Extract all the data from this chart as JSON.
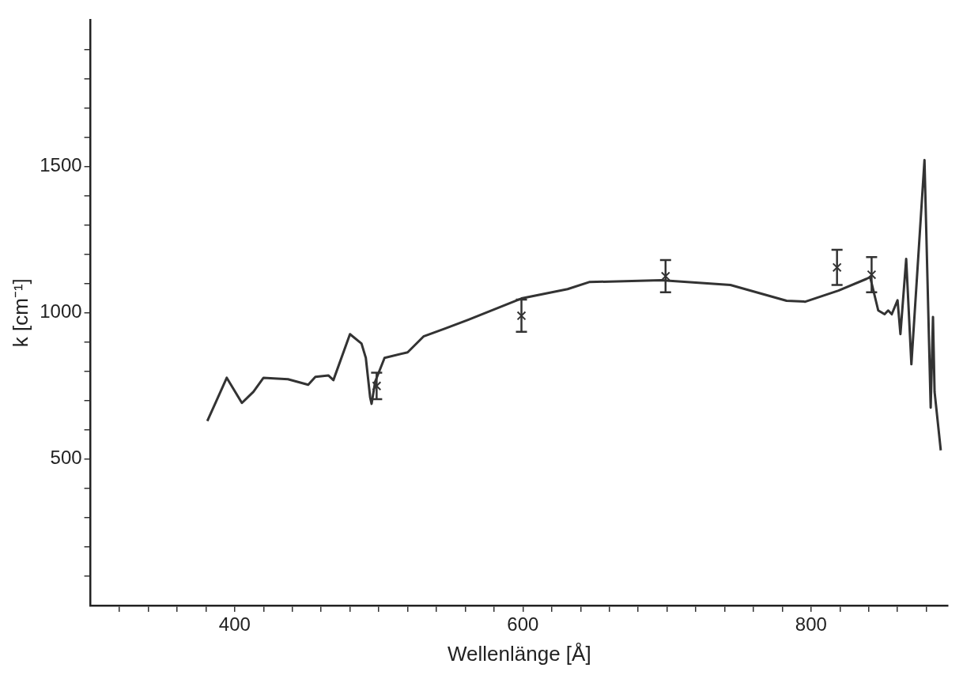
{
  "chart_data": {
    "type": "line",
    "xlabel": "Wellenlänge [Å]",
    "ylabel": "k [cm⁻¹]",
    "xlim": [
      300,
      895
    ],
    "ylim": [
      0,
      2000
    ],
    "xticks": [
      {
        "value": 320,
        "label": null
      },
      {
        "value": 340,
        "label": null
      },
      {
        "value": 360,
        "label": null
      },
      {
        "value": 380,
        "label": null
      },
      400,
      {
        "value": 420,
        "label": null
      },
      {
        "value": 440,
        "label": null
      },
      {
        "value": 460,
        "label": null
      },
      {
        "value": 480,
        "label": null
      },
      {
        "value": 500,
        "label": null
      },
      {
        "value": 520,
        "label": null
      },
      {
        "value": 540,
        "label": null
      },
      {
        "value": 560,
        "label": null
      },
      {
        "value": 580,
        "label": null
      },
      600,
      {
        "value": 620,
        "label": null
      },
      {
        "value": 640,
        "label": null
      },
      {
        "value": 660,
        "label": null
      },
      {
        "value": 680,
        "label": null
      },
      {
        "value": 700,
        "label": null
      },
      {
        "value": 720,
        "label": null
      },
      {
        "value": 740,
        "label": null
      },
      {
        "value": 760,
        "label": null
      },
      {
        "value": 780,
        "label": null
      },
      800,
      {
        "value": 820,
        "label": null
      },
      {
        "value": 840,
        "label": null
      },
      {
        "value": 860,
        "label": null
      },
      {
        "value": 880,
        "label": null
      }
    ],
    "yticks": [
      {
        "value": 100,
        "label": null
      },
      {
        "value": 200,
        "label": null
      },
      {
        "value": 300,
        "label": null
      },
      {
        "value": 400,
        "label": null
      },
      500,
      {
        "value": 600,
        "label": null
      },
      {
        "value": 700,
        "label": null
      },
      {
        "value": 800,
        "label": null
      },
      {
        "value": 900,
        "label": null
      },
      1000,
      {
        "value": 1100,
        "label": null
      },
      {
        "value": 1200,
        "label": null
      },
      {
        "value": 1300,
        "label": null
      },
      {
        "value": 1400,
        "label": null
      },
      1500,
      {
        "value": 1600,
        "label": null
      },
      {
        "value": 1700,
        "label": null
      },
      {
        "value": 1800,
        "label": null
      },
      {
        "value": 1900,
        "label": null
      }
    ],
    "grid": false,
    "legend": false,
    "series": [
      {
        "color": "#333333",
        "marker": "none",
        "x": [
          381,
          394.5,
          405,
          413,
          420,
          437,
          451,
          456,
          465,
          468.5,
          480,
          488,
          491,
          494,
          495,
          497.5,
          504,
          520,
          531,
          546,
          562,
          599,
          631,
          646,
          696,
          744,
          783,
          796,
          819,
          838.5,
          841,
          846.6,
          851,
          853.5,
          856,
          860,
          862,
          866,
          869.6,
          878.7,
          883,
          884.6,
          885.7,
          890
        ],
        "values": [
          630,
          778,
          692,
          730,
          778,
          773,
          754,
          781,
          786,
          770,
          927,
          895,
          846,
          711,
          689,
          765,
          846,
          865,
          919,
          946,
          976,
          1049,
          1081,
          1105,
          1111,
          1095,
          1041,
          1038,
          1076,
          1116,
          1122,
          1008,
          995,
          1008,
          995,
          1043,
          927,
          1184,
          824,
          1522,
          676,
          986,
          730,
          530
        ]
      },
      {
        "type": "scatter",
        "color": "#333333",
        "marker": "cross",
        "x": [
          498.5,
          599,
          699,
          818,
          842
        ],
        "values": [
          750,
          990,
          1125,
          1155,
          1130
        ],
        "errors": [
          45,
          55,
          55,
          60,
          60
        ]
      }
    ]
  }
}
